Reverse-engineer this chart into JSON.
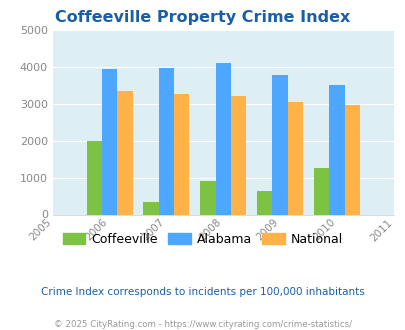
{
  "title": "Coffeeville Property Crime Index",
  "years": [
    2005,
    2006,
    2007,
    2008,
    2009,
    2010,
    2011
  ],
  "bar_years": [
    2006,
    2007,
    2008,
    2009,
    2010
  ],
  "coffeeville": [
    2000,
    350,
    900,
    625,
    1250
  ],
  "alabama": [
    3950,
    3975,
    4100,
    3775,
    3500
  ],
  "national": [
    3350,
    3250,
    3200,
    3050,
    2950
  ],
  "color_coffeeville": "#7dc242",
  "color_alabama": "#4da6ff",
  "color_national": "#ffb347",
  "ylim": [
    0,
    5000
  ],
  "yticks": [
    0,
    1000,
    2000,
    3000,
    4000,
    5000
  ],
  "title_color": "#1a5ea8",
  "bg_color": "#ddeef4",
  "subtitle": "Crime Index corresponds to incidents per 100,000 inhabitants",
  "footer": "© 2025 CityRating.com - https://www.cityrating.com/crime-statistics/",
  "subtitle_color": "#1a5ea8",
  "footer_color": "#999999"
}
